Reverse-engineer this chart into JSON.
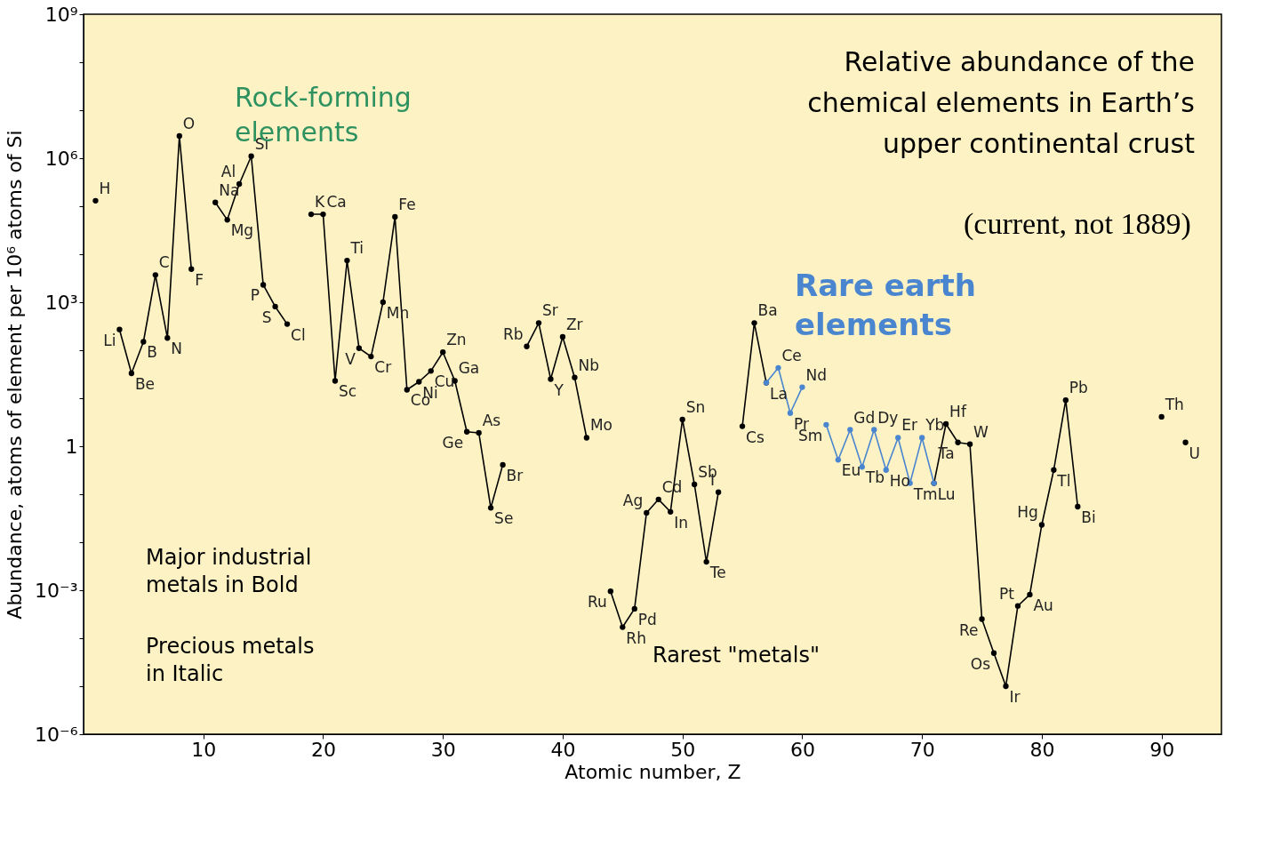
{
  "chart_data": {
    "type": "line",
    "title": "Relative abundance of the chemical elements in Earth’s upper continental crust",
    "xlabel": "Atomic number, Z",
    "ylabel": "Abundance, atoms of element per 10⁶ atoms of Si",
    "log": "y",
    "grid": false,
    "marker": "circle",
    "line_style": "solid",
    "xlim": [
      0,
      95
    ],
    "xticks": [
      10,
      20,
      30,
      40,
      50,
      60,
      70,
      80,
      90
    ],
    "ylim": [
      1e-06,
      1000000000.0
    ],
    "yticks": [
      {
        "value": 1e-06,
        "label": "10⁻⁶"
      },
      {
        "value": 1e-05,
        "label": null
      },
      {
        "value": 0.0001,
        "label": null
      },
      {
        "value": 0.001,
        "label": "10⁻³"
      },
      {
        "value": 0.01,
        "label": null
      },
      {
        "value": 0.1,
        "label": null
      },
      1,
      {
        "value": 10,
        "label": null
      },
      {
        "value": 100,
        "label": null
      },
      {
        "value": 1000,
        "label": "10³"
      },
      {
        "value": 10000.0,
        "label": null
      },
      {
        "value": 100000.0,
        "label": null
      },
      {
        "value": 1000000.0,
        "label": "10⁶"
      },
      {
        "value": 10000000.0,
        "label": null
      },
      {
        "value": 100000000.0,
        "label": null
      },
      {
        "value": 1000000000.0,
        "label": "10⁹"
      }
    ],
    "series": [
      {
        "color": "#000000",
        "x": [
          1,
          2,
          3,
          4,
          5,
          6,
          7,
          8,
          9,
          10,
          11,
          12,
          13,
          14,
          15,
          16,
          17,
          18,
          19,
          20,
          21,
          22,
          23,
          24,
          25,
          26,
          27,
          28,
          29,
          30,
          31,
          32,
          33,
          34,
          35,
          36,
          37,
          38,
          39,
          40,
          41,
          42,
          43,
          44,
          45,
          46,
          47,
          48,
          49,
          50,
          51,
          52,
          53,
          54,
          55,
          56,
          57,
          64,
          71,
          72,
          73,
          74,
          75,
          76,
          77,
          78,
          79,
          80,
          81,
          82,
          83,
          84,
          90,
          91,
          92
        ],
        "values": [
          130000,
          null,
          270,
          33,
          150,
          3700,
          180,
          2900000,
          4900,
          null,
          120000,
          52000,
          290000,
          1100000,
          2300,
          810,
          350,
          null,
          68000,
          68000,
          23,
          7400,
          110,
          74,
          1000,
          60000,
          15,
          22,
          37,
          91,
          23,
          2.0,
          1.9,
          0.052,
          0.41,
          null,
          120,
          370,
          25,
          190,
          27,
          1.5,
          null,
          0.00095,
          0.00017,
          0.00041,
          0.041,
          0.078,
          0.043,
          3.6,
          0.16,
          0.0039,
          0.11,
          null,
          2.6,
          370,
          21,
          null,
          0.17,
          2.9,
          1.2,
          1.1,
          0.00025,
          4.9e-05,
          1e-05,
          0.00047,
          0.00081,
          0.023,
          0.32,
          9.1,
          0.055,
          null,
          4.1,
          null,
          1.2
        ]
      },
      {
        "color": "#4a86d0",
        "x": [
          57,
          58,
          59,
          60,
          61,
          62,
          63,
          64,
          65,
          66,
          67,
          68,
          69,
          70,
          71
        ],
        "values": [
          21,
          43,
          4.9,
          17,
          null,
          2.8,
          0.52,
          2.2,
          0.37,
          2.2,
          0.32,
          1.5,
          0.17,
          1.5,
          0.17
        ]
      }
    ],
    "annotations": [
      {
        "text": "H",
        "x": 1,
        "y": 130000
      },
      {
        "text": "Li",
        "x": 3,
        "y": 270
      },
      {
        "text": "Be",
        "x": 4,
        "y": 33
      },
      {
        "text": "B",
        "x": 5,
        "y": 150
      },
      {
        "text": "C",
        "x": 6,
        "y": 3700
      },
      {
        "text": "N",
        "x": 7,
        "y": 180
      },
      {
        "text": "O",
        "x": 8,
        "y": 2900000
      },
      {
        "text": "F",
        "x": 9,
        "y": 4900
      },
      {
        "text": "Na",
        "x": 11,
        "y": 120000
      },
      {
        "text": "Mg",
        "x": 12,
        "y": 52000
      },
      {
        "text": "Al",
        "x": 13,
        "y": 290000
      },
      {
        "text": "Si",
        "x": 14,
        "y": 1100000
      },
      {
        "text": "P",
        "x": 15,
        "y": 2300
      },
      {
        "text": "S",
        "x": 16,
        "y": 810
      },
      {
        "text": "Cl",
        "x": 17,
        "y": 350
      },
      {
        "text": "K",
        "x": 19,
        "y": 68000
      },
      {
        "text": "Ca",
        "x": 20,
        "y": 68000
      },
      {
        "text": "Sc",
        "x": 21,
        "y": 23
      },
      {
        "text": "Ti",
        "x": 22,
        "y": 7400
      },
      {
        "text": "V",
        "x": 23,
        "y": 110
      },
      {
        "text": "Cr",
        "x": 24,
        "y": 74
      },
      {
        "text": "Mn",
        "x": 25,
        "y": 1000
      },
      {
        "text": "Fe",
        "x": 26,
        "y": 60000
      },
      {
        "text": "Co",
        "x": 27,
        "y": 15
      },
      {
        "text": "Ni",
        "x": 28,
        "y": 22
      },
      {
        "text": "Cu",
        "x": 29,
        "y": 37
      },
      {
        "text": "Zn",
        "x": 30,
        "y": 91
      },
      {
        "text": "Ga",
        "x": 31,
        "y": 23
      },
      {
        "text": "Ge",
        "x": 32,
        "y": 2.0
      },
      {
        "text": "As",
        "x": 33,
        "y": 1.9
      },
      {
        "text": "Se",
        "x": 34,
        "y": 0.052
      },
      {
        "text": "Br",
        "x": 35,
        "y": 0.41
      },
      {
        "text": "Rb",
        "x": 37,
        "y": 120
      },
      {
        "text": "Sr",
        "x": 38,
        "y": 370
      },
      {
        "text": "Y",
        "x": 39,
        "y": 25
      },
      {
        "text": "Zr",
        "x": 40,
        "y": 190
      },
      {
        "text": "Nb",
        "x": 41,
        "y": 27
      },
      {
        "text": "Mo",
        "x": 42,
        "y": 1.5
      },
      {
        "text": "Ru",
        "x": 44,
        "y": 0.00095
      },
      {
        "text": "Rh",
        "x": 45,
        "y": 0.00017
      },
      {
        "text": "Pd",
        "x": 46,
        "y": 0.00041
      },
      {
        "text": "Ag",
        "x": 47,
        "y": 0.041
      },
      {
        "text": "Cd",
        "x": 48,
        "y": 0.078
      },
      {
        "text": "In",
        "x": 49,
        "y": 0.043
      },
      {
        "text": "Sn",
        "x": 50,
        "y": 3.6
      },
      {
        "text": "Sb",
        "x": 51,
        "y": 0.16
      },
      {
        "text": "Te",
        "x": 52,
        "y": 0.0039
      },
      {
        "text": "I",
        "x": 53,
        "y": 0.11
      },
      {
        "text": "Cs",
        "x": 55,
        "y": 2.6
      },
      {
        "text": "Ba",
        "x": 56,
        "y": 370
      },
      {
        "text": "La",
        "x": 57,
        "y": 21
      },
      {
        "text": "Ce",
        "x": 58,
        "y": 43
      },
      {
        "text": "Pr",
        "x": 59,
        "y": 4.9
      },
      {
        "text": "Nd",
        "x": 60,
        "y": 17
      },
      {
        "text": "Sm",
        "x": 62,
        "y": 2.8
      },
      {
        "text": "Eu",
        "x": 63,
        "y": 0.52
      },
      {
        "text": "Gd",
        "x": 64,
        "y": 2.2
      },
      {
        "text": "Tb",
        "x": 65,
        "y": 0.37
      },
      {
        "text": "Dy",
        "x": 66,
        "y": 2.2
      },
      {
        "text": "Ho",
        "x": 67,
        "y": 0.32
      },
      {
        "text": "Er",
        "x": 68,
        "y": 1.5
      },
      {
        "text": "Tm",
        "x": 69,
        "y": 0.17
      },
      {
        "text": "Yb",
        "x": 70,
        "y": 1.5
      },
      {
        "text": "Lu",
        "x": 71,
        "y": 0.17
      },
      {
        "text": "Hf",
        "x": 72,
        "y": 2.9
      },
      {
        "text": "Ta",
        "x": 73,
        "y": 1.2
      },
      {
        "text": "W",
        "x": 74,
        "y": 1.1
      },
      {
        "text": "Re",
        "x": 75,
        "y": 0.00025
      },
      {
        "text": "Os",
        "x": 76,
        "y": 4.9e-05
      },
      {
        "text": "Ir",
        "x": 77,
        "y": 1e-05
      },
      {
        "text": "Pt",
        "x": 78,
        "y": 0.00047
      },
      {
        "text": "Au",
        "x": 79,
        "y": 0.00081
      },
      {
        "text": "Hg",
        "x": 80,
        "y": 0.023
      },
      {
        "text": "Tl",
        "x": 81,
        "y": 0.32
      },
      {
        "text": "Pb",
        "x": 82,
        "y": 9.1
      },
      {
        "text": "Bi",
        "x": 83,
        "y": 0.055
      },
      {
        "text": "Th",
        "x": 90,
        "y": 4.1
      },
      {
        "text": "U",
        "x": 92,
        "y": 1.2
      },
      "(current, not 1889)",
      "Rock-forming elements",
      "Rare earth elements",
      "Rarest \"metals\"",
      "Major industrial metals in Bold",
      "Precious metals in Italic"
    ]
  }
}
